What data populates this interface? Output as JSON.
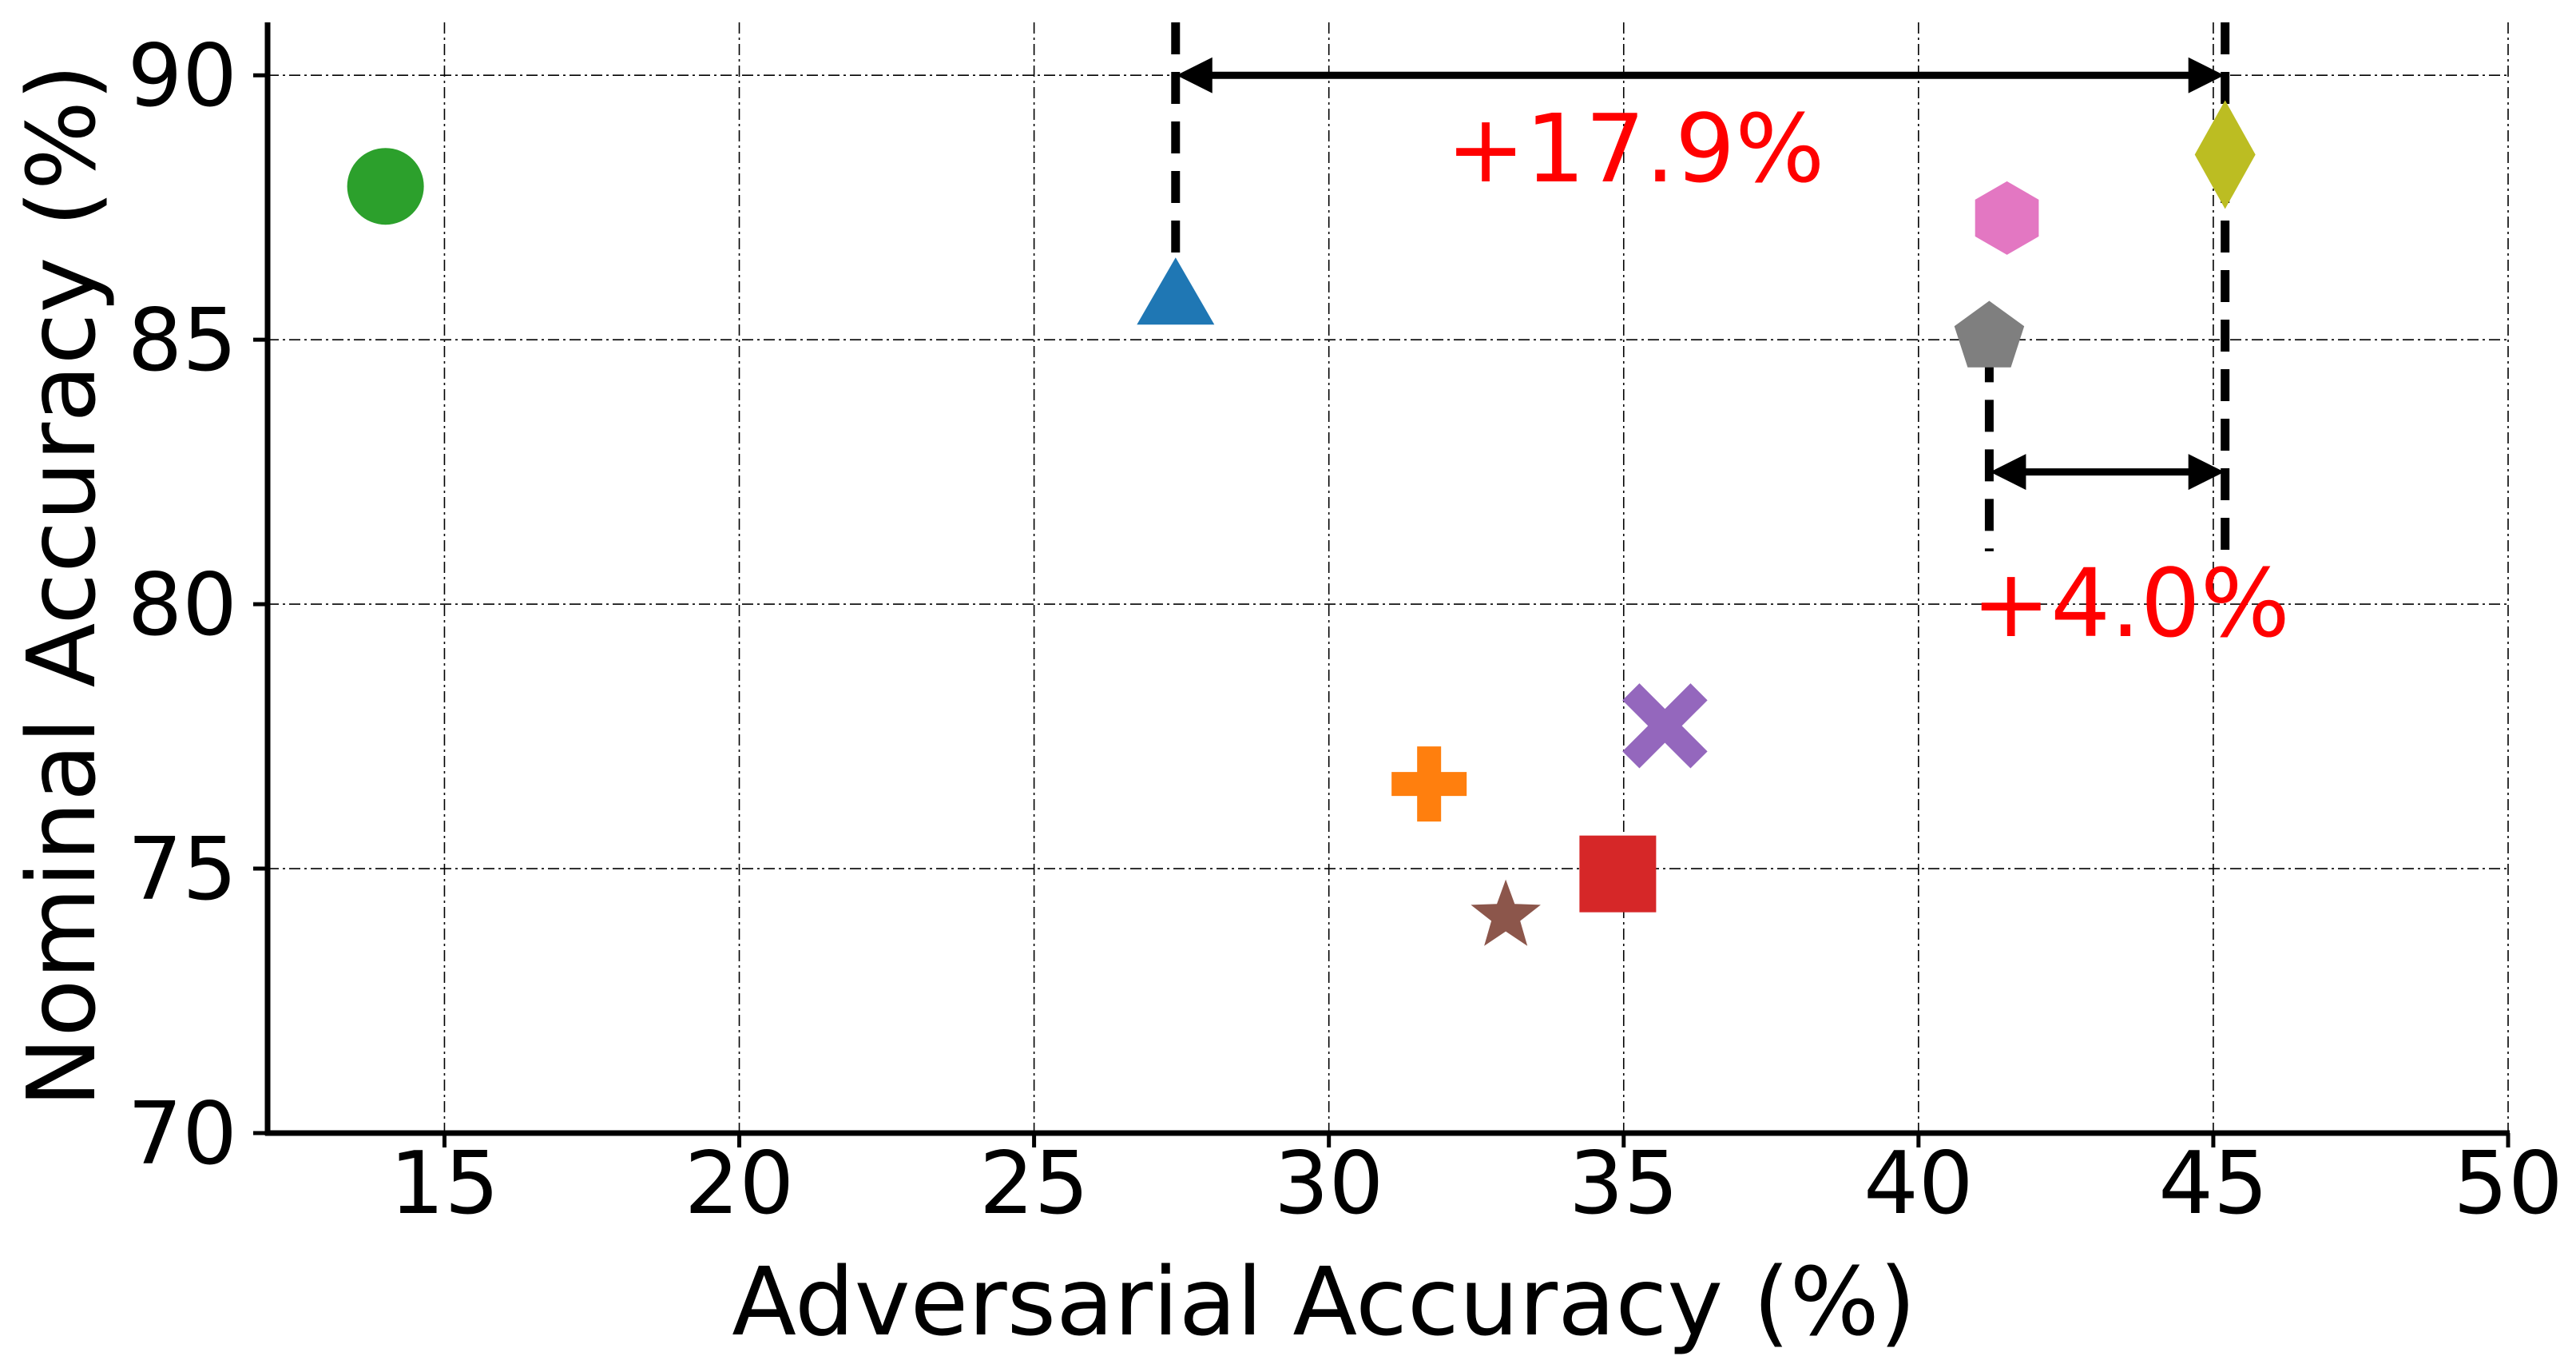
{
  "chart_data": {
    "type": "scatter",
    "title": "",
    "xlabel": "Adversarial Accuracy (%)",
    "ylabel": "Nominal Accuracy (%)",
    "xlim": [
      12,
      50
    ],
    "ylim": [
      70,
      91
    ],
    "xticks": [
      15,
      20,
      25,
      30,
      35,
      40,
      45,
      50
    ],
    "yticks": [
      70,
      75,
      80,
      85,
      90
    ],
    "grid": true,
    "legend": "none",
    "points": [
      {
        "x": 14.0,
        "y": 87.9,
        "marker": "circle",
        "color": "#2ca02c"
      },
      {
        "x": 27.4,
        "y": 85.8,
        "marker": "triangle",
        "color": "#1f77b4"
      },
      {
        "x": 31.7,
        "y": 76.6,
        "marker": "plus",
        "color": "#ff7f0e"
      },
      {
        "x": 33.0,
        "y": 74.1,
        "marker": "star",
        "color": "#8c564b"
      },
      {
        "x": 34.9,
        "y": 74.9,
        "marker": "square",
        "color": "#d62728"
      },
      {
        "x": 35.7,
        "y": 77.7,
        "marker": "x",
        "color": "#9467bd"
      },
      {
        "x": 41.2,
        "y": 85.1,
        "marker": "pentagon",
        "color": "#7f7f7f"
      },
      {
        "x": 41.5,
        "y": 87.3,
        "marker": "hexagon",
        "color": "#e377c2"
      },
      {
        "x": 45.2,
        "y": 88.5,
        "marker": "diamond",
        "color": "#bcbd22"
      }
    ],
    "annotations": [
      {
        "text": "+17.9%",
        "color": "#ff0000",
        "x_from": 27.4,
        "x_to": 45.2,
        "arrow_y": 90.0,
        "text_x": 35.2,
        "text_y": 88.6
      },
      {
        "text": "+4.0%",
        "color": "#ff0000",
        "x_from": 41.2,
        "x_to": 45.2,
        "arrow_y": 82.5,
        "text_x": 43.6,
        "text_y": 80.0
      }
    ],
    "reference_lines": [
      {
        "x": 27.4,
        "y_from": 86.0,
        "y_to": 91.0
      },
      {
        "x": 41.2,
        "y_from": 81.0,
        "y_to": 84.8
      },
      {
        "x": 45.2,
        "y_from": 81.0,
        "y_to": 91.0
      }
    ]
  }
}
